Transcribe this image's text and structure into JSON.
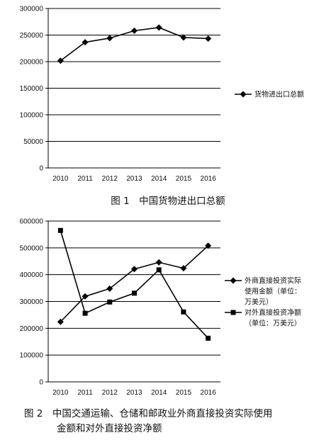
{
  "chart_data": [
    {
      "type": "line",
      "caption": "图 1　中国货物进出口总额",
      "categories": [
        "2010",
        "2011",
        "2012",
        "2013",
        "2014",
        "2015",
        "2016"
      ],
      "ylim": [
        0,
        300000
      ],
      "yticks": [
        "0",
        "50000",
        "100000",
        "150000",
        "200000",
        "250000",
        "300000"
      ],
      "grid": true,
      "legend_position": "right",
      "series": [
        {
          "name": "货物进出口总额",
          "marker": "diamond",
          "values": [
            201700,
            236500,
            244200,
            258200,
            264200,
            245500,
            243400
          ]
        }
      ]
    },
    {
      "type": "line",
      "caption_lines": [
        "图 2　中国交通运输、仓储和邮政业外商直接投资实际使用",
        "金额和对外直接投资净额"
      ],
      "categories": [
        "2010",
        "2011",
        "2012",
        "2013",
        "2014",
        "2015",
        "2016"
      ],
      "ylim": [
        0,
        600000
      ],
      "yticks": [
        "0",
        "100000",
        "200000",
        "300000",
        "400000",
        "500000",
        "600000"
      ],
      "grid": true,
      "legend_position": "right",
      "series": [
        {
          "name_lines": [
            "外商直接投资实际",
            "使用金额（单位：",
            "万美元）"
          ],
          "marker": "diamond",
          "values": [
            224000,
            319000,
            348000,
            421000,
            446000,
            424000,
            508000
          ]
        },
        {
          "name_lines": [
            "对外直接投资净额",
            "（单位：万美元）"
          ],
          "marker": "square",
          "values": [
            565000,
            256000,
            298000,
            331000,
            418000,
            261000,
            163000
          ]
        }
      ]
    }
  ]
}
